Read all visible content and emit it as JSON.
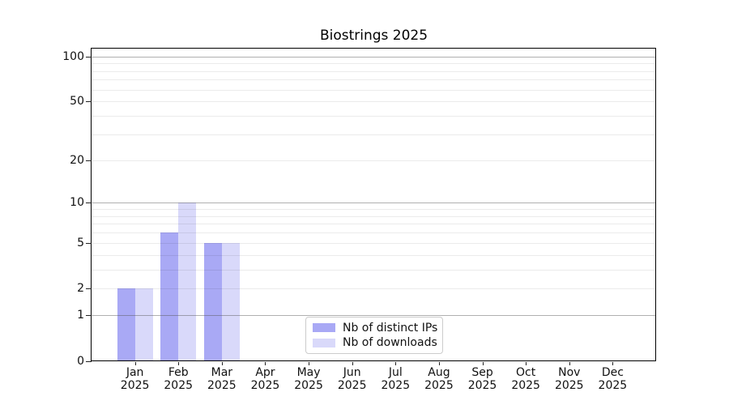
{
  "chart_data": {
    "type": "bar",
    "title": "Biostrings 2025",
    "categories": [
      "Jan",
      "Feb",
      "Mar",
      "Apr",
      "May",
      "Jun",
      "Jul",
      "Aug",
      "Sep",
      "Oct",
      "Nov",
      "Dec"
    ],
    "category_sublabel": "2025",
    "series": [
      {
        "name": "Nb of distinct IPs",
        "color": "#a9a9f5",
        "values": [
          2,
          6,
          5,
          0,
          0,
          0,
          0,
          0,
          0,
          0,
          0,
          0
        ]
      },
      {
        "name": "Nb of downloads",
        "color": "#d9d9fa",
        "values": [
          2,
          10,
          5,
          0,
          0,
          0,
          0,
          0,
          0,
          0,
          0,
          0
        ]
      }
    ],
    "xlabel": "",
    "ylabel": "",
    "yscale": "log10(1+v)",
    "ylim": [
      0,
      113
    ],
    "ytick_labels": [
      0,
      1,
      2,
      5,
      10,
      20,
      50,
      100
    ],
    "major_gridlines": [
      1,
      10,
      100
    ],
    "minor_gridlines": [
      2,
      3,
      4,
      5,
      6,
      7,
      8,
      9,
      20,
      30,
      40,
      50,
      60,
      70,
      80,
      90
    ],
    "grid": "on",
    "legend_position": "lower-center-inside",
    "style_colors": {
      "axis": "#000000",
      "major_grid": "rgba(80,80,80,0.45)",
      "minor_grid": "rgba(0,0,0,0.08)",
      "legend_border": "#cccccc"
    }
  }
}
